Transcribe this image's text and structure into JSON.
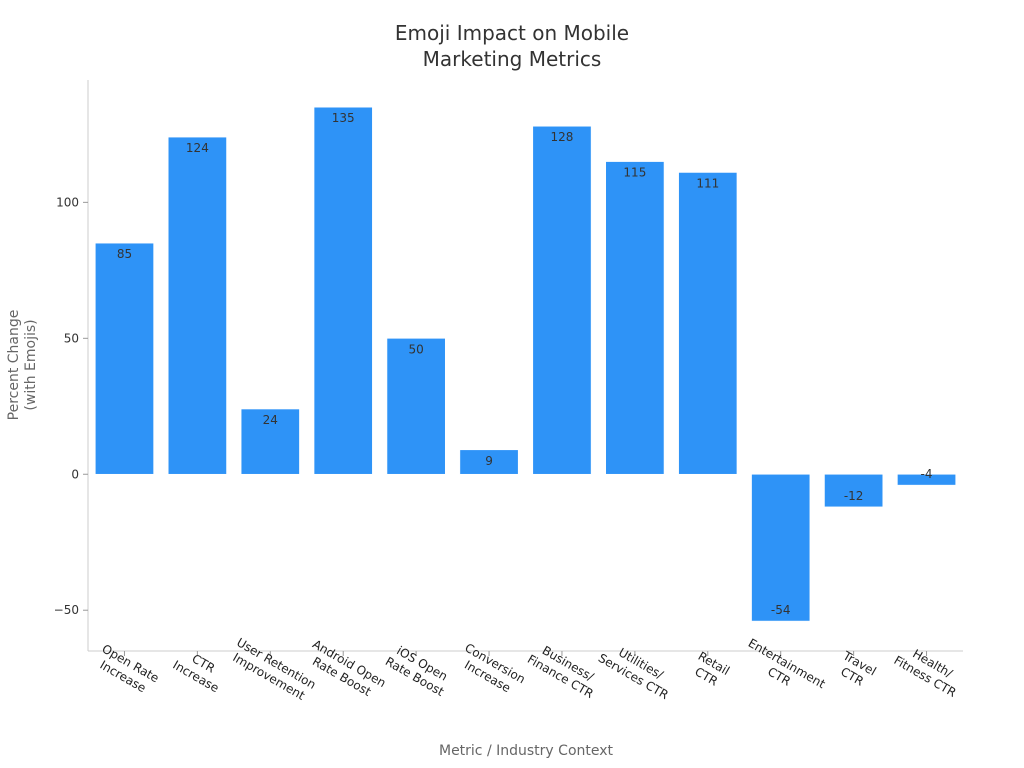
{
  "chart_data": {
    "type": "bar",
    "title_lines": [
      "Emoji Impact on Mobile",
      "Marketing Metrics"
    ],
    "xlabel": "Metric / Industry Context",
    "ylabel_lines": [
      "Percent Change",
      "(with Emojis)"
    ],
    "categories": [
      [
        "Open Rate",
        "Increase"
      ],
      [
        "CTR",
        "Increase"
      ],
      [
        "User Retention",
        "Improvement"
      ],
      [
        "Android Open",
        "Rate Boost"
      ],
      [
        "iOS Open",
        "Rate Boost"
      ],
      [
        "Conversion",
        "Increase"
      ],
      [
        "Business/",
        "Finance CTR"
      ],
      [
        "Utilities/",
        "Services CTR"
      ],
      [
        "Retail",
        "CTR"
      ],
      [
        "Entertainment",
        "CTR"
      ],
      [
        "Travel",
        "CTR"
      ],
      [
        "Health/",
        "Fitness CTR"
      ]
    ],
    "values": [
      85,
      124,
      24,
      135,
      50,
      9,
      128,
      115,
      111,
      -54,
      -12,
      -4
    ],
    "value_labels": [
      "85",
      "124",
      "24",
      "135",
      "50",
      "9",
      "128",
      "115",
      "111",
      "-54",
      "-12",
      "-4"
    ],
    "ylim": [
      -65,
      145
    ],
    "yticks": [
      -50,
      0,
      50,
      100
    ],
    "ytick_labels": [
      "−50",
      "0",
      "50",
      "100"
    ],
    "bar_color": "#2E93F7",
    "grid": false,
    "legend": "none"
  }
}
